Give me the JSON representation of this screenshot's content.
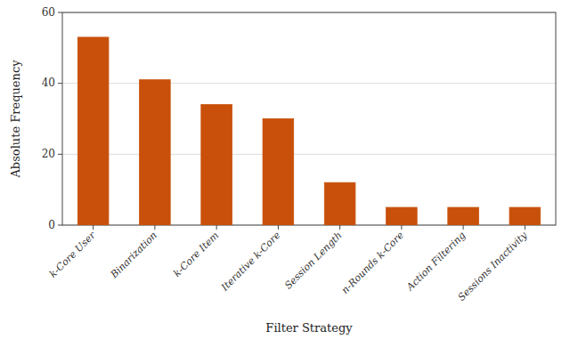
{
  "chart_data": {
    "type": "bar",
    "categories": [
      "k-Core User",
      "Binarization",
      "k-Core Item",
      "Iterative k-Core",
      "Session Length",
      "n-Rounds k-Core",
      "Action Filtering",
      "Sessions Inactivity"
    ],
    "values": [
      53,
      41,
      34,
      30,
      12,
      5,
      5,
      5
    ],
    "color": "#C8500A",
    "xlabel": "Filter Strategy",
    "ylabel": "Absolute Frequency",
    "ylim": [
      0,
      60
    ],
    "yticks": [
      0,
      20,
      40,
      60
    ],
    "grid": true
  }
}
